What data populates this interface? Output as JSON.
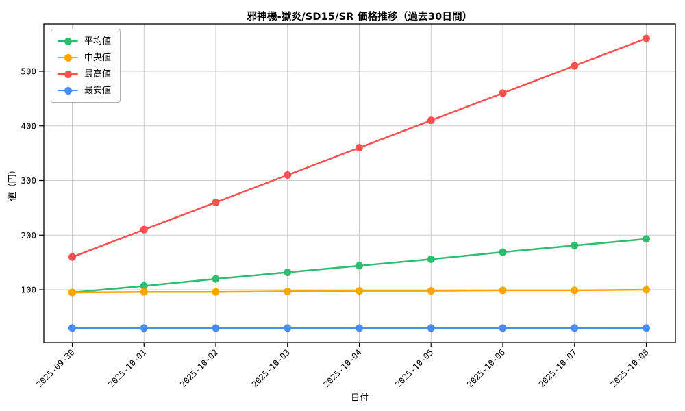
{
  "chart_data": {
    "type": "line",
    "title": "邪神機-獄炎/SD15/SR 価格推移（過去30日間）",
    "xlabel": "日付",
    "ylabel": "値（円）",
    "x": [
      "2025-09-30",
      "2025-10-01",
      "2025-10-02",
      "2025-10-03",
      "2025-10-04",
      "2025-10-05",
      "2025-10-06",
      "2025-10-07",
      "2025-10-08"
    ],
    "series": [
      {
        "name": "平均値",
        "color": "#2dbd6e",
        "values": [
          95,
          107,
          120,
          132,
          144,
          156,
          169,
          181,
          193
        ]
      },
      {
        "name": "中央値",
        "color": "#ffa502",
        "values": [
          95,
          96,
          96,
          97,
          98,
          98,
          99,
          99,
          100
        ]
      },
      {
        "name": "最高値",
        "color": "#fa5050",
        "values": [
          160,
          210,
          260,
          310,
          360,
          410,
          460,
          510,
          560
        ]
      },
      {
        "name": "最安値",
        "color": "#4b8bf5",
        "values": [
          30,
          30,
          30,
          30,
          30,
          30,
          30,
          30,
          30
        ]
      }
    ],
    "yticks": [
      100,
      200,
      300,
      400,
      500
    ],
    "ylim": [
      3.5,
      586.5
    ],
    "grid": true,
    "legend_position": "upper left",
    "colors": {
      "grid": "#cccccc",
      "spine": "#000000",
      "text": "#000000",
      "background": "#ffffff"
    }
  }
}
